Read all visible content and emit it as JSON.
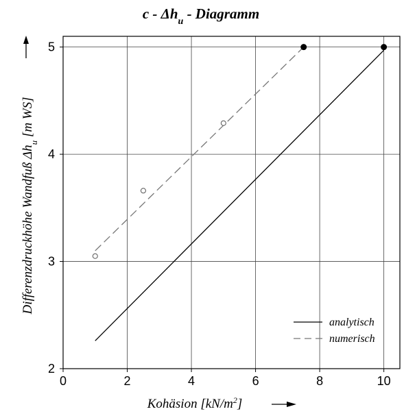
{
  "chart_data": {
    "type": "line",
    "title": "c - Δh_u - Diagramm",
    "title_main": "c - Δh",
    "title_sub": "u",
    "title_tail": " - Diagramm",
    "xlabel": "Kohäsion  [kN/m²]",
    "xlabel_main": "Kohäsion  [kN/m",
    "xlabel_sup": "2",
    "xlabel_tail": "]",
    "ylabel": "Differenzdruckhöhe Wandfuß Δh_u  [m WS]",
    "ylabel_main": "Differenzdruckhöhe Wandfuß Δh",
    "ylabel_sub": "u",
    "ylabel_tail": "  [m WS]",
    "xlim": [
      0,
      10.5
    ],
    "ylim": [
      2,
      5.1
    ],
    "xticks": [
      0,
      2,
      4,
      6,
      8,
      10
    ],
    "yticks": [
      2,
      3,
      4,
      5
    ],
    "x_tick_labels": [
      "0",
      "2",
      "4",
      "6",
      "8",
      "10"
    ],
    "y_tick_labels": [
      "2",
      "3",
      "4",
      "5"
    ],
    "grid": true,
    "legend_position": "bottom-right",
    "series": [
      {
        "name": "analytisch",
        "style": "solid",
        "color": "#000000",
        "x": [
          1,
          10
        ],
        "y": [
          2.26,
          4.97
        ]
      },
      {
        "name": "numerisch",
        "style": "dashed",
        "color": "#777777",
        "x": [
          1,
          7.5
        ],
        "y": [
          3.1,
          5.0
        ]
      }
    ],
    "markers": [
      {
        "kind": "open",
        "x": 1.0,
        "y": 3.05
      },
      {
        "kind": "open",
        "x": 2.5,
        "y": 3.66
      },
      {
        "kind": "open",
        "x": 5.0,
        "y": 4.29
      },
      {
        "kind": "filled",
        "x": 7.5,
        "y": 5.0
      },
      {
        "kind": "filled",
        "x": 10.0,
        "y": 5.0
      }
    ]
  }
}
